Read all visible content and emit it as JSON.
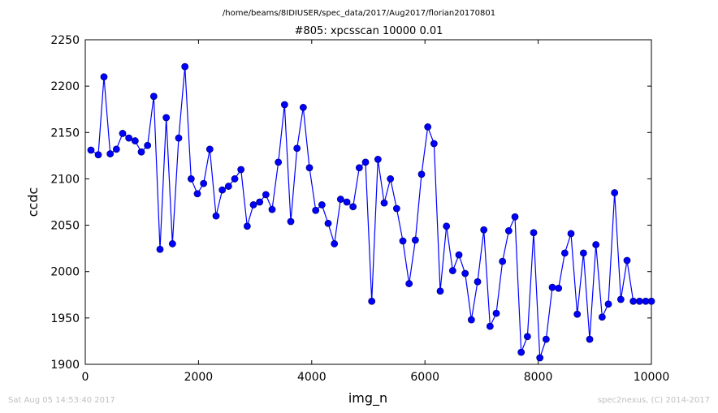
{
  "header": {
    "path": "/home/beams/8IDIUSER/spec_data/2017/Aug2017/florian20170801"
  },
  "footer": {
    "timestamp": "Sat Aug 05 14:53:40 2017",
    "credit": "spec2nexus, (C) 2014-2017"
  },
  "chart_data": {
    "type": "line",
    "title": "#805: xpcsscan 10000 0.01",
    "xlabel": "img_n",
    "ylabel": "ccdc",
    "xlim": [
      0,
      10000
    ],
    "ylim": [
      1900,
      2250
    ],
    "xticks": [
      0,
      2000,
      4000,
      6000,
      8000,
      10000
    ],
    "yticks": [
      1900,
      1950,
      2000,
      2050,
      2100,
      2150,
      2200,
      2250
    ],
    "grid": false,
    "marker": "circle",
    "colors": {
      "series": "#0000ff",
      "marker_edge": "#000080"
    },
    "series": [
      {
        "x": [
          100,
          230,
          330,
          440,
          550,
          660,
          770,
          880,
          990,
          1100,
          1210,
          1320,
          1430,
          1540,
          1650,
          1760,
          1870,
          1980,
          2090,
          2200,
          2310,
          2420,
          2530,
          2640,
          2750,
          2860,
          2970,
          3080,
          3190,
          3300,
          3410,
          3520,
          3630,
          3740,
          3850,
          3960,
          4070,
          4180,
          4290,
          4400,
          4510,
          4620,
          4730,
          4840,
          4950,
          5060,
          5170,
          5280,
          5390,
          5500,
          5610,
          5720,
          5830,
          5940,
          6050,
          6160,
          6270,
          6380,
          6490,
          6600,
          6710,
          6820,
          6930,
          7040,
          7150,
          7260,
          7370,
          7480,
          7590,
          7700,
          7810,
          7920,
          8030,
          8140,
          8250,
          8360,
          8470,
          8580,
          8690,
          8800,
          8910,
          9020,
          9130,
          9240,
          9350,
          9460,
          9570,
          9680,
          9790,
          9900,
          10000
        ],
        "values": [
          2131,
          2126,
          2210,
          2127,
          2132,
          2149,
          2144,
          2141,
          2129,
          2136,
          2189,
          2024,
          2166,
          2030,
          2144,
          2221,
          2100,
          2084,
          2095,
          2132,
          2060,
          2088,
          2092,
          2100,
          2110,
          2049,
          2072,
          2075,
          2083,
          2067,
          2118,
          2180,
          2054,
          2133,
          2177,
          2112,
          2066,
          2072,
          2052,
          2030,
          2078,
          2075,
          2070,
          2112,
          2118,
          1968,
          2121,
          2074,
          2100,
          2068,
          2033,
          1987,
          2034,
          2105,
          2156,
          2138,
          1979,
          2049,
          2001,
          2018,
          1998,
          1948,
          1989,
          2045,
          1941,
          1955,
          2011,
          2044,
          2059,
          1913,
          1930,
          2042,
          1907,
          1927,
          1983,
          1982,
          2020,
          2041,
          1954,
          2020,
          1927,
          2029,
          1951,
          1965,
          2085,
          1970,
          2012,
          1968,
          1968,
          1968,
          1968
        ]
      }
    ]
  }
}
